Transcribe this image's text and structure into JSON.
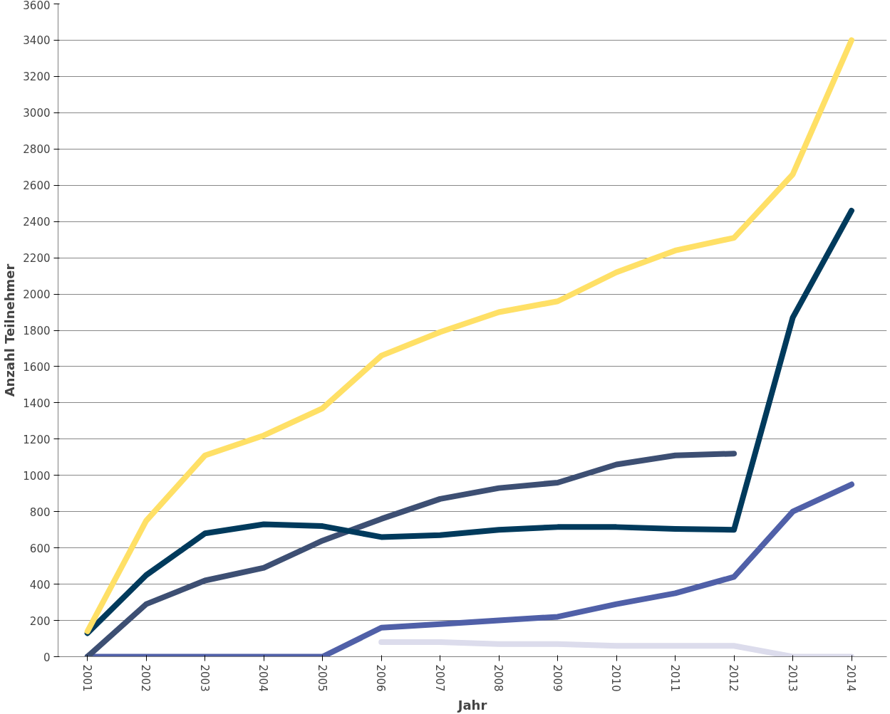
{
  "chart_data": {
    "type": "line",
    "xlabel": "Jahr",
    "ylabel": "Anzahl Teilnehmer",
    "categories": [
      "2001",
      "2002",
      "2003",
      "2004",
      "2005",
      "2006",
      "2007",
      "2008",
      "2009",
      "2010",
      "2011",
      "2012",
      "2013",
      "2014"
    ],
    "series": [
      {
        "color": "#dcdcec",
        "values": [
          null,
          null,
          null,
          null,
          null,
          80,
          80,
          70,
          70,
          60,
          60,
          60,
          0,
          0
        ]
      },
      {
        "color": "#5060a8",
        "values": [
          0,
          0,
          0,
          0,
          0,
          160,
          180,
          200,
          220,
          290,
          350,
          440,
          800,
          950
        ]
      },
      {
        "color": "#3d4f73",
        "values": [
          0,
          290,
          420,
          490,
          640,
          760,
          870,
          930,
          960,
          1060,
          1110,
          1120,
          null,
          null
        ]
      },
      {
        "color": "#003a5c",
        "values": [
          130,
          450,
          680,
          730,
          720,
          660,
          670,
          700,
          715,
          715,
          705,
          700,
          1870,
          2460
        ]
      },
      {
        "color": "#ffe066",
        "values": [
          140,
          750,
          1110,
          1220,
          1370,
          1660,
          1790,
          1900,
          1960,
          2120,
          2240,
          2310,
          2660,
          3400
        ]
      }
    ],
    "ylim": [
      0,
      3600
    ],
    "yticks": [
      0,
      200,
      400,
      600,
      800,
      1000,
      1200,
      1400,
      1600,
      1800,
      2000,
      2200,
      2400,
      2600,
      2800,
      3000,
      3200,
      3400,
      3600
    ],
    "grid": "y",
    "marker": "none",
    "line_style": "solid"
  }
}
